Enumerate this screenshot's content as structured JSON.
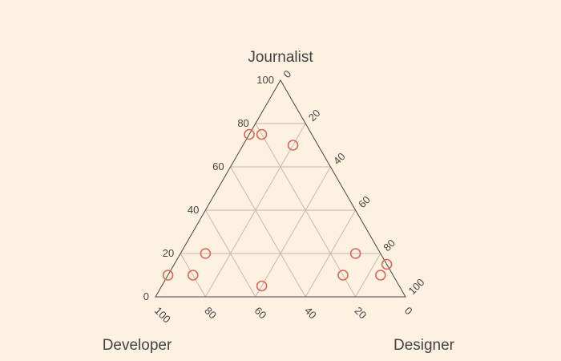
{
  "chart_data": {
    "type": "ternary-scatter",
    "title": "",
    "axes": {
      "a": {
        "title": "Journalist",
        "ticks": [
          "0",
          "20",
          "40",
          "60",
          "80",
          "100"
        ],
        "range": [
          0,
          100
        ]
      },
      "b": {
        "title": "Developer",
        "ticks": [
          "0",
          "20",
          "40",
          "60",
          "80",
          "100"
        ],
        "range": [
          0,
          100
        ]
      },
      "c": {
        "title": "Designer",
        "ticks": [
          "0",
          "20",
          "40",
          "60",
          "80",
          "100"
        ],
        "range": [
          0,
          100
        ]
      }
    },
    "gridlines": true,
    "marker": {
      "symbol": "circle-open",
      "color": "#d9685a"
    },
    "points": [
      {
        "journalist": 75,
        "developer": 25,
        "designer": 0
      },
      {
        "journalist": 75,
        "developer": 20,
        "designer": 5
      },
      {
        "journalist": 70,
        "developer": 10,
        "designer": 20
      },
      {
        "journalist": 20,
        "developer": 70,
        "designer": 10
      },
      {
        "journalist": 10,
        "developer": 90,
        "designer": 0
      },
      {
        "journalist": 10,
        "developer": 80,
        "designer": 10
      },
      {
        "journalist": 5,
        "developer": 55,
        "designer": 40
      },
      {
        "journalist": 20,
        "developer": 10,
        "designer": 70
      },
      {
        "journalist": 15,
        "developer": 0,
        "designer": 85
      },
      {
        "journalist": 10,
        "developer": 20,
        "designer": 70
      },
      {
        "journalist": 10,
        "developer": 5,
        "designer": 85
      }
    ]
  }
}
